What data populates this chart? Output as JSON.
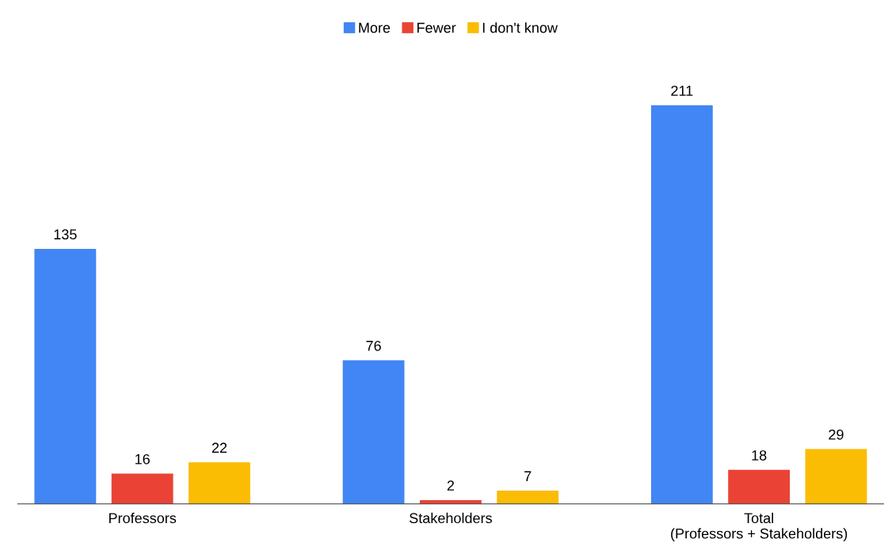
{
  "chart_data": {
    "type": "bar",
    "categories": [
      "Professors",
      "Stakeholders",
      "Total\n(Professors + Stakeholders)"
    ],
    "series": [
      {
        "name": "More",
        "color": "#4285f4",
        "values": [
          135,
          76,
          211
        ]
      },
      {
        "name": "Fewer",
        "color": "#ea4335",
        "values": [
          16,
          2,
          18
        ]
      },
      {
        "name": "I don't know",
        "color": "#fbbc04",
        "values": [
          22,
          7,
          29
        ]
      }
    ],
    "data_labels": true,
    "legend": "top",
    "grid": false,
    "tick_labels": "x"
  }
}
